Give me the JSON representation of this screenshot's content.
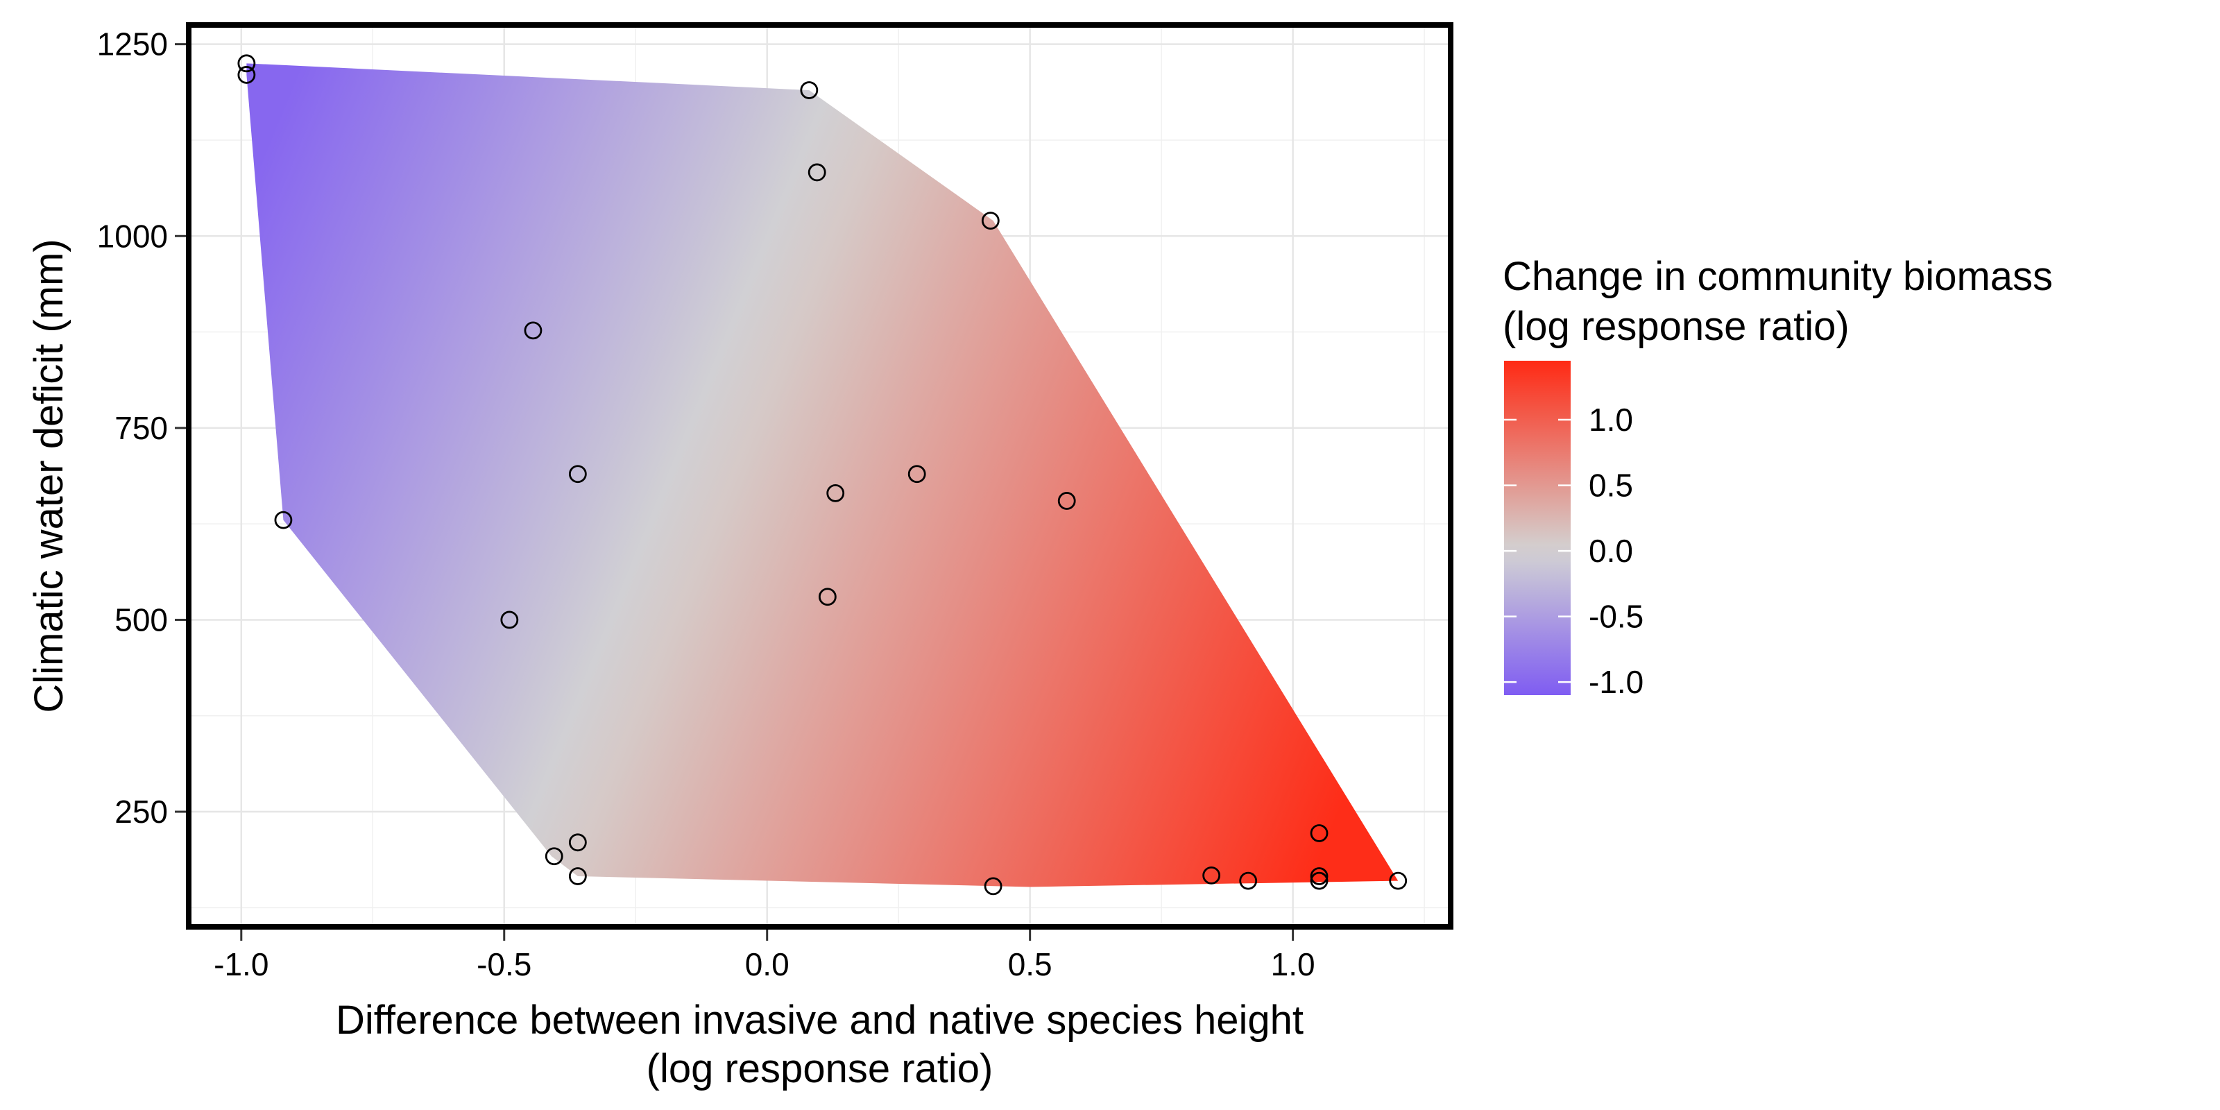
{
  "chart_data": {
    "type": "scatter",
    "title": "",
    "xlabel": [
      "Difference between invasive and native species height",
      "(log response ratio)"
    ],
    "ylabel": "Climatic water deficit (mm)",
    "xlim": [
      -1.1,
      1.3
    ],
    "ylim": [
      100,
      1275
    ],
    "xticks": [
      -1.0,
      -0.5,
      0.0,
      0.5,
      1.0
    ],
    "xtick_labels": [
      "-1.0",
      "-0.5",
      "0.0",
      "0.5",
      "1.0"
    ],
    "yticks": [
      250,
      500,
      750,
      1000,
      1250
    ],
    "ytick_labels": [
      "250",
      "500",
      "750",
      "1000",
      "1250"
    ],
    "grid": true,
    "legend": {
      "title": [
        "Change in community biomass",
        "(log response ratio)"
      ],
      "position": "right",
      "type": "colorbar",
      "range": [
        -1.1,
        1.45
      ],
      "ticks": [
        1.0,
        0.5,
        0.0,
        -0.5,
        -1.0
      ],
      "tick_labels": [
        "1.0",
        "0.5",
        "0.0",
        "-0.5",
        "-1.0"
      ],
      "colors": {
        "low": "#7f5cf2",
        "mid": "#d3d3d3",
        "high": "#ff2a14"
      }
    },
    "surface": {
      "description": "interpolated surface bounded by convex hull of points",
      "hull": [
        {
          "x": -0.99,
          "y": 1225
        },
        {
          "x": 0.08,
          "y": 1190
        },
        {
          "x": 0.43,
          "y": 1020
        },
        {
          "x": 1.2,
          "y": 160
        },
        {
          "x": 0.5,
          "y": 152
        },
        {
          "x": -0.36,
          "y": 166
        },
        {
          "x": -0.41,
          "y": 192
        },
        {
          "x": -0.92,
          "y": 630
        },
        {
          "x": -0.99,
          "y": 1210
        }
      ]
    },
    "points": [
      {
        "x": -0.99,
        "y": 1225
      },
      {
        "x": -0.99,
        "y": 1210
      },
      {
        "x": 0.08,
        "y": 1190
      },
      {
        "x": 0.095,
        "y": 1083
      },
      {
        "x": 0.425,
        "y": 1020
      },
      {
        "x": -0.445,
        "y": 877
      },
      {
        "x": -0.36,
        "y": 690
      },
      {
        "x": 0.13,
        "y": 665
      },
      {
        "x": 0.285,
        "y": 690
      },
      {
        "x": 0.57,
        "y": 655
      },
      {
        "x": -0.92,
        "y": 630
      },
      {
        "x": -0.49,
        "y": 500
      },
      {
        "x": 0.115,
        "y": 530
      },
      {
        "x": -0.36,
        "y": 210
      },
      {
        "x": -0.405,
        "y": 192
      },
      {
        "x": -0.36,
        "y": 166
      },
      {
        "x": 0.43,
        "y": 153
      },
      {
        "x": 0.845,
        "y": 167
      },
      {
        "x": 0.915,
        "y": 160
      },
      {
        "x": 1.05,
        "y": 222
      },
      {
        "x": 1.05,
        "y": 166
      },
      {
        "x": 1.05,
        "y": 160
      },
      {
        "x": 1.2,
        "y": 160
      }
    ]
  }
}
